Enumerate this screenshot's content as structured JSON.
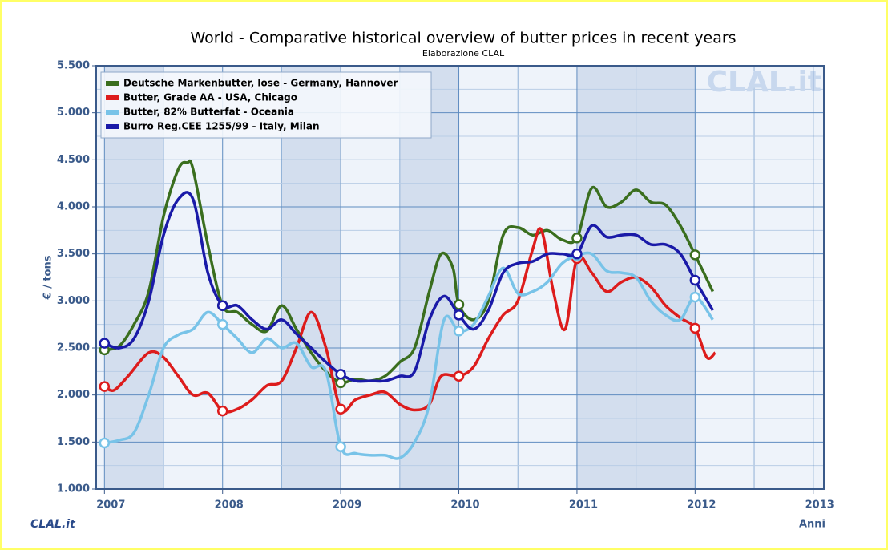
{
  "chart_data": {
    "type": "line",
    "title": "World - Comparative historical overview of butter prices in recent years",
    "subtitle": "Elaborazione CLAL",
    "y_label": "€ / tons",
    "x_label": "Anni",
    "watermark": "CLAL.it",
    "logo": "CLAL.it",
    "xlim": [
      2006.93,
      2013.09
    ],
    "xticks": [
      2007,
      2008,
      2009,
      2010,
      2011,
      2012,
      2013
    ],
    "ylim": [
      1000,
      5500
    ],
    "yticks": [
      {
        "value": 1000,
        "label": "1.000"
      },
      {
        "value": 1500,
        "label": "1.500"
      },
      {
        "value": 2000,
        "label": "2.000"
      },
      {
        "value": 2500,
        "label": "2.500"
      },
      {
        "value": 3000,
        "label": "3.000"
      },
      {
        "value": 3500,
        "label": "3.500"
      },
      {
        "value": 4000,
        "label": "4.000"
      },
      {
        "value": 4500,
        "label": "4.500"
      },
      {
        "value": 5000,
        "label": "5.000"
      },
      {
        "value": 5500,
        "label": "5.500"
      }
    ],
    "grid": true,
    "legend": "top-left",
    "series": [
      {
        "name": "Deutsche Markenbutter, lose - Germany, Hannover",
        "color": "#3a6e1e",
        "x": [
          2007.0,
          2007.125,
          2007.25,
          2007.375,
          2007.5,
          2007.625,
          2007.7,
          2007.75,
          2007.875,
          2008.0,
          2008.125,
          2008.25,
          2008.375,
          2008.5,
          2008.625,
          2008.75,
          2008.875,
          2009.0,
          2009.125,
          2009.25,
          2009.375,
          2009.5,
          2009.625,
          2009.75,
          2009.85,
          2009.95,
          2010.0,
          2010.125,
          2010.25,
          2010.375,
          2010.5,
          2010.625,
          2010.75,
          2010.875,
          2011.0,
          2011.125,
          2011.25,
          2011.375,
          2011.5,
          2011.625,
          2011.75,
          2011.875,
          2012.0,
          2012.15
        ],
        "values": [
          2480,
          2520,
          2750,
          3100,
          3900,
          4400,
          4470,
          4400,
          3600,
          2950,
          2880,
          2750,
          2680,
          2950,
          2700,
          2450,
          2250,
          2130,
          2170,
          2150,
          2200,
          2350,
          2500,
          3100,
          3500,
          3350,
          2960,
          2800,
          3000,
          3700,
          3780,
          3700,
          3750,
          3650,
          3670,
          4200,
          4000,
          4050,
          4180,
          4050,
          4020,
          3800,
          3490,
          3100
        ]
      },
      {
        "name": "Butter, Grade AA - USA, Chicago",
        "color": "#dd1c1c",
        "x": [
          2007.0,
          2007.08,
          2007.2,
          2007.375,
          2007.5,
          2007.625,
          2007.75,
          2007.875,
          2008.0,
          2008.125,
          2008.25,
          2008.375,
          2008.5,
          2008.625,
          2008.75,
          2008.875,
          2009.0,
          2009.125,
          2009.25,
          2009.375,
          2009.5,
          2009.625,
          2009.75,
          2009.85,
          2010.0,
          2010.125,
          2010.25,
          2010.375,
          2010.5,
          2010.625,
          2010.7,
          2010.8,
          2010.9,
          2011.0,
          2011.125,
          2011.25,
          2011.375,
          2011.5,
          2011.625,
          2011.75,
          2011.875,
          2012.0,
          2012.1,
          2012.17
        ],
        "values": [
          2090,
          2050,
          2200,
          2450,
          2400,
          2200,
          2000,
          2020,
          1830,
          1850,
          1950,
          2100,
          2150,
          2500,
          2880,
          2500,
          1850,
          1950,
          2000,
          2030,
          1900,
          1840,
          1900,
          2200,
          2200,
          2300,
          2600,
          2850,
          3000,
          3550,
          3750,
          3100,
          2700,
          3450,
          3300,
          3100,
          3200,
          3250,
          3150,
          2950,
          2820,
          2710,
          2400,
          2450
        ]
      },
      {
        "name": "Butter, 82% Butterfat - Oceania",
        "color": "#78c3e8",
        "x": [
          2007.0,
          2007.125,
          2007.25,
          2007.375,
          2007.5,
          2007.625,
          2007.75,
          2007.875,
          2008.0,
          2008.125,
          2008.25,
          2008.375,
          2008.5,
          2008.625,
          2008.75,
          2008.875,
          2009.0,
          2009.125,
          2009.25,
          2009.375,
          2009.5,
          2009.625,
          2009.75,
          2009.875,
          2010.0,
          2010.125,
          2010.25,
          2010.375,
          2010.5,
          2010.625,
          2010.75,
          2010.875,
          2011.0,
          2011.125,
          2011.25,
          2011.375,
          2011.5,
          2011.625,
          2011.75,
          2011.875,
          2012.0,
          2012.15
        ],
        "values": [
          1490,
          1520,
          1600,
          2000,
          2500,
          2640,
          2700,
          2880,
          2750,
          2600,
          2450,
          2600,
          2500,
          2550,
          2300,
          2250,
          1450,
          1380,
          1360,
          1360,
          1330,
          1500,
          1900,
          2800,
          2680,
          2750,
          3050,
          3350,
          3080,
          3100,
          3200,
          3400,
          3480,
          3500,
          3320,
          3300,
          3250,
          3000,
          2850,
          2800,
          3040,
          2800
        ]
      },
      {
        "name": "Burro Reg.CEE 1255/99 - Italy, Milan",
        "color": "#1a1aa8",
        "x": [
          2007.0,
          2007.125,
          2007.25,
          2007.375,
          2007.5,
          2007.625,
          2007.75,
          2007.875,
          2008.0,
          2008.125,
          2008.25,
          2008.375,
          2008.5,
          2008.625,
          2008.75,
          2008.875,
          2009.0,
          2009.125,
          2009.25,
          2009.375,
          2009.5,
          2009.625,
          2009.75,
          2009.875,
          2010.0,
          2010.125,
          2010.25,
          2010.375,
          2010.5,
          2010.625,
          2010.75,
          2010.875,
          2011.0,
          2011.125,
          2011.25,
          2011.375,
          2011.5,
          2011.625,
          2011.75,
          2011.875,
          2012.0,
          2012.15
        ],
        "values": [
          2550,
          2500,
          2600,
          3000,
          3700,
          4080,
          4080,
          3300,
          2950,
          2950,
          2800,
          2700,
          2800,
          2650,
          2500,
          2350,
          2220,
          2150,
          2150,
          2150,
          2200,
          2250,
          2800,
          3050,
          2850,
          2700,
          2900,
          3300,
          3400,
          3420,
          3500,
          3500,
          3500,
          3800,
          3680,
          3700,
          3700,
          3600,
          3600,
          3500,
          3220,
          2900
        ]
      }
    ]
  }
}
